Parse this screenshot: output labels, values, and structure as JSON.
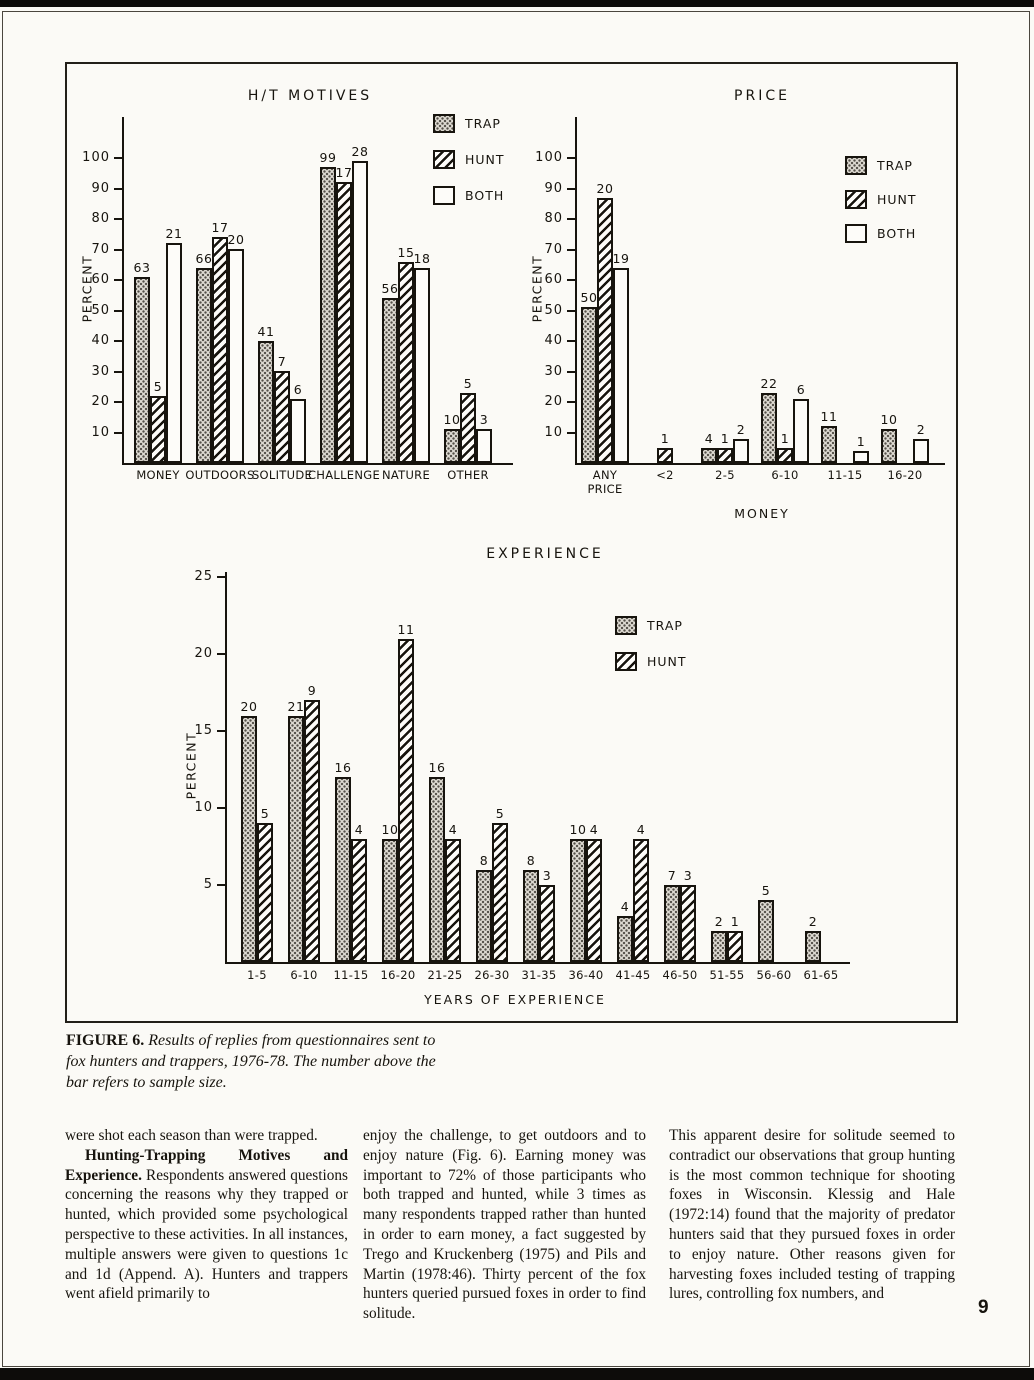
{
  "page": {
    "number": "9"
  },
  "figure": {
    "caption_label": "FIGURE 6.",
    "caption_text": "Results of replies from questionnaires sent to fox hunters and trappers, 1976-78. The number above the bar refers to sample size."
  },
  "colors": {
    "ink": "#17140e",
    "paper": "#fbfaf6"
  },
  "patterns": {
    "TRAP": "stipple",
    "HUNT": "diagonal-hatch",
    "BOTH": "white"
  },
  "chart_data": [
    {
      "type": "bar",
      "title": "H/T MOTIVES",
      "ylabel": "PERCENT",
      "yticks": [
        10,
        20,
        30,
        40,
        50,
        60,
        70,
        80,
        90,
        100
      ],
      "ylim": [
        0,
        110
      ],
      "legend": [
        "TRAP",
        "HUNT",
        "BOTH"
      ],
      "legend_position": "top-right",
      "note": "number above bar is sample size n; bar height is percent",
      "categories": [
        "MONEY",
        "OUTDOORS",
        "SOLITUDE",
        "CHALLENGE",
        "NATURE",
        "OTHER"
      ],
      "groups": [
        {
          "category": "MONEY",
          "bars": [
            {
              "series": "TRAP",
              "percent": 61,
              "n": "63"
            },
            {
              "series": "HUNT",
              "percent": 22,
              "n": "5"
            },
            {
              "series": "BOTH",
              "percent": 72,
              "n": "21"
            }
          ]
        },
        {
          "category": "OUTDOORS",
          "bars": [
            {
              "series": "TRAP",
              "percent": 64,
              "n": "66"
            },
            {
              "series": "HUNT",
              "percent": 74,
              "n": "17"
            },
            {
              "series": "BOTH",
              "percent": 70,
              "n": "20"
            }
          ]
        },
        {
          "category": "SOLITUDE",
          "bars": [
            {
              "series": "TRAP",
              "percent": 40,
              "n": "41"
            },
            {
              "series": "HUNT",
              "percent": 30,
              "n": "7"
            },
            {
              "series": "BOTH",
              "percent": 21,
              "n": "6"
            }
          ]
        },
        {
          "category": "CHALLENGE",
          "bars": [
            {
              "series": "TRAP",
              "percent": 97,
              "n": "99"
            },
            {
              "series": "HUNT",
              "percent": 92,
              "n": "17"
            },
            {
              "series": "BOTH",
              "percent": 99,
              "n": "28"
            }
          ]
        },
        {
          "category": "NATURE",
          "bars": [
            {
              "series": "TRAP",
              "percent": 54,
              "n": "56"
            },
            {
              "series": "HUNT",
              "percent": 66,
              "n": "15"
            },
            {
              "series": "BOTH",
              "percent": 64,
              "n": "18"
            }
          ]
        },
        {
          "category": "OTHER",
          "bars": [
            {
              "series": "TRAP",
              "percent": 11,
              "n": "10"
            },
            {
              "series": "HUNT",
              "percent": 23,
              "n": "5"
            },
            {
              "series": "BOTH",
              "percent": 11,
              "n": "3"
            }
          ]
        }
      ]
    },
    {
      "type": "bar",
      "title": "PRICE",
      "ylabel": "PERCENT",
      "xlabel": "MONEY",
      "yticks": [
        10,
        20,
        30,
        40,
        50,
        60,
        70,
        80,
        90,
        100
      ],
      "ylim": [
        0,
        110
      ],
      "legend": [
        "TRAP",
        "HUNT",
        "BOTH"
      ],
      "legend_position": "top-right",
      "categories": [
        "ANY PRICE",
        "<2",
        "2-5",
        "6-10",
        "11-15",
        "16-20"
      ],
      "groups": [
        {
          "category": "ANY\nPRICE",
          "bars": [
            {
              "series": "TRAP",
              "percent": 51,
              "n": "50"
            },
            {
              "series": "HUNT",
              "percent": 87,
              "n": "20"
            },
            {
              "series": "BOTH",
              "percent": 64,
              "n": "19"
            }
          ]
        },
        {
          "category": "<2",
          "bars": [
            {
              "series": "HUNT",
              "percent": 5,
              "n": "1"
            }
          ]
        },
        {
          "category": "2-5",
          "bars": [
            {
              "series": "TRAP",
              "percent": 5,
              "n": "4"
            },
            {
              "series": "HUNT",
              "percent": 5,
              "n": "1"
            },
            {
              "series": "BOTH",
              "percent": 8,
              "n": "2"
            }
          ]
        },
        {
          "category": "6-10",
          "bars": [
            {
              "series": "TRAP",
              "percent": 23,
              "n": "22"
            },
            {
              "series": "HUNT",
              "percent": 5,
              "n": "1"
            },
            {
              "series": "BOTH",
              "percent": 21,
              "n": "6"
            }
          ]
        },
        {
          "category": "11-15",
          "bars": [
            {
              "series": "TRAP",
              "percent": 12,
              "n": "11"
            },
            {
              "series": "BOTH",
              "percent": 4,
              "n": "1"
            }
          ]
        },
        {
          "category": "16-20",
          "bars": [
            {
              "series": "TRAP",
              "percent": 11,
              "n": "10"
            },
            {
              "series": "BOTH",
              "percent": 8,
              "n": "2"
            }
          ]
        }
      ]
    },
    {
      "type": "bar",
      "title": "EXPERIENCE",
      "ylabel": "PERCENT",
      "xlabel": "YEARS OF EXPERIENCE",
      "yticks": [
        5,
        10,
        15,
        20,
        25
      ],
      "ylim": [
        0,
        27
      ],
      "legend": [
        "TRAP",
        "HUNT"
      ],
      "legend_position": "top-right",
      "categories": [
        "1-5",
        "6-10",
        "11-15",
        "16-20",
        "21-25",
        "26-30",
        "31-35",
        "36-40",
        "41-45",
        "46-50",
        "51-55",
        "56-60",
        "61-65"
      ],
      "groups": [
        {
          "category": "1-5",
          "bars": [
            {
              "series": "TRAP",
              "percent": 16,
              "n": "20"
            },
            {
              "series": "HUNT",
              "percent": 9,
              "n": "5"
            }
          ]
        },
        {
          "category": "6-10",
          "bars": [
            {
              "series": "TRAP",
              "percent": 16,
              "n": "21"
            },
            {
              "series": "HUNT",
              "percent": 17,
              "n": "9"
            }
          ]
        },
        {
          "category": "11-15",
          "bars": [
            {
              "series": "TRAP",
              "percent": 12,
              "n": "16"
            },
            {
              "series": "HUNT",
              "percent": 8,
              "n": "4"
            }
          ]
        },
        {
          "category": "16-20",
          "bars": [
            {
              "series": "TRAP",
              "percent": 8,
              "n": "10"
            },
            {
              "series": "HUNT",
              "percent": 21,
              "n": "11"
            }
          ]
        },
        {
          "category": "21-25",
          "bars": [
            {
              "series": "TRAP",
              "percent": 12,
              "n": "16"
            },
            {
              "series": "HUNT",
              "percent": 8,
              "n": "4"
            }
          ]
        },
        {
          "category": "26-30",
          "bars": [
            {
              "series": "TRAP",
              "percent": 6,
              "n": "8"
            },
            {
              "series": "HUNT",
              "percent": 9,
              "n": "5"
            }
          ]
        },
        {
          "category": "31-35",
          "bars": [
            {
              "series": "TRAP",
              "percent": 6,
              "n": "8"
            },
            {
              "series": "HUNT",
              "percent": 5,
              "n": "3"
            }
          ]
        },
        {
          "category": "36-40",
          "bars": [
            {
              "series": "TRAP",
              "percent": 8,
              "n": "10"
            },
            {
              "series": "HUNT",
              "percent": 8,
              "n": "4"
            }
          ]
        },
        {
          "category": "41-45",
          "bars": [
            {
              "series": "TRAP",
              "percent": 3,
              "n": "4"
            },
            {
              "series": "HUNT",
              "percent": 8,
              "n": "4"
            }
          ]
        },
        {
          "category": "46-50",
          "bars": [
            {
              "series": "TRAP",
              "percent": 5,
              "n": "7"
            },
            {
              "series": "HUNT",
              "percent": 5,
              "n": "3"
            }
          ]
        },
        {
          "category": "51-55",
          "bars": [
            {
              "series": "TRAP",
              "percent": 2,
              "n": "2"
            },
            {
              "series": "HUNT",
              "percent": 2,
              "n": "1"
            }
          ]
        },
        {
          "category": "56-60",
          "bars": [
            {
              "series": "TRAP",
              "percent": 4,
              "n": "5"
            }
          ]
        },
        {
          "category": "61-65",
          "bars": [
            {
              "series": "TRAP",
              "percent": 2,
              "n": "2"
            }
          ]
        }
      ]
    }
  ],
  "body": {
    "col1": {
      "para1": "were shot each season than were trapped.",
      "para2_heading": "Hunting-Trapping Motives and Experience.",
      "para2_text": "Respondents answered questions concerning the reasons why they trapped or hunted, which provided some psychological perspective to these activities. In all instances, multiple answers were given to questions 1c and 1d (Append. A). Hunters and trappers went afield primarily to"
    },
    "col2": "enjoy the challenge, to get outdoors and to enjoy nature (Fig. 6). Earning money was important to 72% of those participants who both trapped and hunted, while 3 times as many respondents trapped rather than hunted in order to earn money, a fact suggested by Trego and Kruckenberg (1975) and Pils and Martin (1978:46). Thirty percent of the fox hunters queried pursued foxes in order to find solitude.",
    "col3": "This apparent desire for solitude seemed to contradict our observations that group hunting is the most common technique for shooting foxes in Wisconsin. Klessig and Hale (1972:14) found that the majority of predator hunters said that they pursued foxes in order to enjoy nature. Other reasons given for harvesting foxes included testing of trapping lures, controlling fox numbers, and"
  }
}
